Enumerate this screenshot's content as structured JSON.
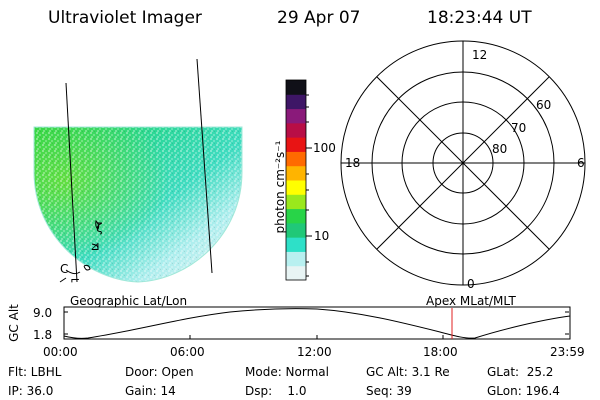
{
  "header": {
    "instrument": "Ultraviolet Imager",
    "date": "29 Apr 07",
    "time": "18:23:44 UT"
  },
  "colorbar": {
    "unit_label": "photon cm⁻²s⁻¹",
    "tick_labels": [
      "100",
      "10"
    ],
    "scale": "log",
    "colors": [
      "#e8f4f4",
      "#b8f0f0",
      "#2ee0c8",
      "#20c878",
      "#28d448",
      "#9ae81c",
      "#ffff00",
      "#ffb400",
      "#ff6a00",
      "#e81414",
      "#b80e46",
      "#8a1a7a",
      "#3e1666",
      "#101018"
    ]
  },
  "polar_plot": {
    "hour_labels": [
      "12",
      "18",
      "6",
      "0"
    ],
    "lat_labels": [
      "60",
      "70",
      "80"
    ]
  },
  "altitude_plot": {
    "left_title": "Geographic Lat/Lon",
    "right_title": "Apex MLat/MLT",
    "y_axis_label": "GC Alt",
    "y_ticks": [
      "9.0",
      "1.8"
    ],
    "x_ticks": [
      "00:00",
      "06:00",
      "12:00",
      "18:00",
      "23:59"
    ],
    "current_time_marker": "18:23",
    "marker_color": "#e02020"
  },
  "info": {
    "flt": "Flt: LBHL",
    "door": "Door: Open",
    "mode": "Mode: Normal",
    "gc_alt": "GC Alt: 3.1 Re",
    "glat": "GLat:  25.2",
    "ip": "IP: 36.0",
    "gain": "Gain: 14",
    "dsp": "Dsp:    1.0",
    "seq": "Seq: 39",
    "glon": "GLon: 196.4"
  },
  "map_labels": {
    "a": "ζ",
    "b": "⊿",
    "c": "C",
    "d": "⌐"
  }
}
